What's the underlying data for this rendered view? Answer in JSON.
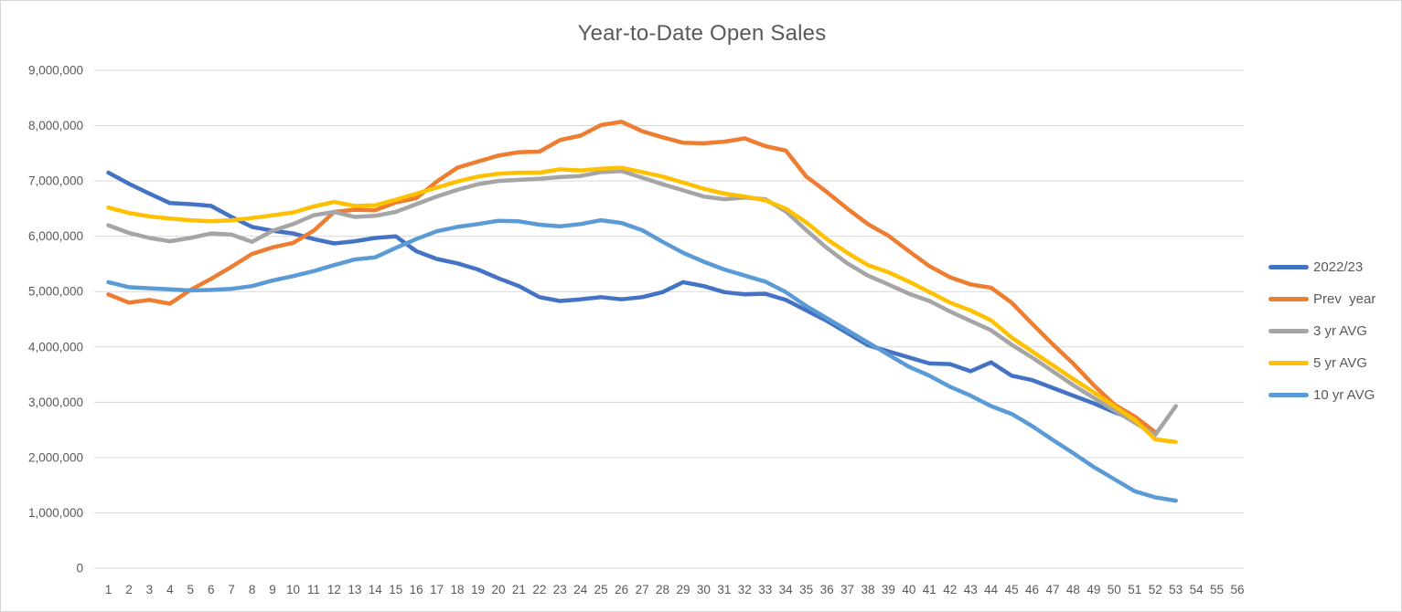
{
  "chart_data": {
    "type": "line",
    "title": "Year-to-Date Open Sales",
    "xlabel": "",
    "ylabel": "",
    "xlim": [
      1,
      56
    ],
    "ylim": [
      0,
      9000000
    ],
    "grid": "horizontal-only",
    "legend_position": "right",
    "x_ticks": [
      1,
      2,
      3,
      4,
      5,
      6,
      7,
      8,
      9,
      10,
      11,
      12,
      13,
      14,
      15,
      16,
      17,
      18,
      19,
      20,
      21,
      22,
      23,
      24,
      25,
      26,
      27,
      28,
      29,
      30,
      31,
      32,
      33,
      34,
      35,
      36,
      37,
      38,
      39,
      40,
      41,
      42,
      43,
      44,
      45,
      46,
      47,
      48,
      49,
      50,
      51,
      52,
      53,
      54,
      55,
      56
    ],
    "y_ticks": [
      "0",
      "1,000,000",
      "2,000,000",
      "3,000,000",
      "4,000,000",
      "5,000,000",
      "6,000,000",
      "7,000,000",
      "8,000,000",
      "9,000,000"
    ],
    "y_tick_values": [
      0,
      1000000,
      2000000,
      3000000,
      4000000,
      5000000,
      6000000,
      7000000,
      8000000,
      9000000
    ],
    "series": [
      {
        "name": "2022/23",
        "color": "#4472C4",
        "x_start": 1,
        "values": [
          7150000,
          6950000,
          6770000,
          6600000,
          6580000,
          6550000,
          6350000,
          6170000,
          6100000,
          6050000,
          5950000,
          5870000,
          5910000,
          5970000,
          6000000,
          5730000,
          5590000,
          5510000,
          5400000,
          5240000,
          5100000,
          4900000,
          4830000,
          4860000,
          4900000,
          4860000,
          4900000,
          4990000,
          5170000,
          5100000,
          4990000,
          4950000,
          4960000,
          4850000,
          4660000,
          4470000,
          4250000,
          4030000,
          3920000,
          3810000,
          3700000,
          3690000,
          3560000,
          3720000,
          3480000,
          3400000,
          3260000,
          3120000,
          2980000,
          2820000,
          2680000
        ]
      },
      {
        "name": "Prev  year",
        "color": "#ED7D31",
        "x_start": 1,
        "values": [
          4950000,
          4800000,
          4850000,
          4780000,
          5030000,
          5230000,
          5450000,
          5680000,
          5800000,
          5880000,
          6100000,
          6440000,
          6480000,
          6470000,
          6610000,
          6690000,
          6990000,
          7240000,
          7350000,
          7460000,
          7520000,
          7530000,
          7740000,
          7820000,
          8010000,
          8070000,
          7900000,
          7790000,
          7690000,
          7680000,
          7710000,
          7770000,
          7630000,
          7550000,
          7080000,
          6800000,
          6500000,
          6220000,
          6010000,
          5730000,
          5460000,
          5260000,
          5130000,
          5070000,
          4800000,
          4420000,
          4050000,
          3700000,
          3310000,
          2960000,
          2740000,
          2460000
        ]
      },
      {
        "name": "3 yr AVG",
        "color": "#A5A5A5",
        "x_start": 1,
        "values": [
          6200000,
          6060000,
          5970000,
          5910000,
          5970000,
          6050000,
          6030000,
          5900000,
          6100000,
          6220000,
          6380000,
          6440000,
          6350000,
          6370000,
          6440000,
          6580000,
          6720000,
          6840000,
          6940000,
          7000000,
          7020000,
          7040000,
          7070000,
          7090000,
          7160000,
          7180000,
          7060000,
          6940000,
          6830000,
          6720000,
          6670000,
          6700000,
          6670000,
          6450000,
          6110000,
          5790000,
          5510000,
          5290000,
          5130000,
          4960000,
          4830000,
          4640000,
          4470000,
          4300000,
          4040000,
          3810000,
          3560000,
          3310000,
          3080000,
          2850000,
          2630000,
          2410000,
          2930000
        ]
      },
      {
        "name": "5 yr AVG",
        "color": "#FFC000",
        "x_start": 1,
        "values": [
          6520000,
          6420000,
          6360000,
          6320000,
          6290000,
          6270000,
          6290000,
          6330000,
          6380000,
          6430000,
          6540000,
          6620000,
          6550000,
          6560000,
          6660000,
          6770000,
          6880000,
          6990000,
          7080000,
          7130000,
          7150000,
          7150000,
          7210000,
          7190000,
          7220000,
          7240000,
          7160000,
          7080000,
          6970000,
          6860000,
          6770000,
          6720000,
          6650000,
          6500000,
          6250000,
          5950000,
          5700000,
          5480000,
          5350000,
          5180000,
          4990000,
          4800000,
          4660000,
          4480000,
          4170000,
          3920000,
          3670000,
          3420000,
          3180000,
          2930000,
          2680000,
          2330000,
          2280000
        ]
      },
      {
        "name": "10 yr AVG",
        "color": "#5B9BD5",
        "x_start": 1,
        "values": [
          5170000,
          5080000,
          5060000,
          5040000,
          5020000,
          5030000,
          5050000,
          5100000,
          5200000,
          5280000,
          5370000,
          5480000,
          5580000,
          5620000,
          5790000,
          5950000,
          6090000,
          6170000,
          6220000,
          6280000,
          6270000,
          6210000,
          6180000,
          6220000,
          6290000,
          6240000,
          6110000,
          5900000,
          5700000,
          5540000,
          5400000,
          5290000,
          5180000,
          4990000,
          4740000,
          4520000,
          4300000,
          4080000,
          3860000,
          3640000,
          3480000,
          3280000,
          3120000,
          2930000,
          2790000,
          2570000,
          2320000,
          2080000,
          1830000,
          1610000,
          1390000,
          1280000,
          1220000
        ]
      }
    ]
  },
  "colors": {
    "grid": "#D9D9D9",
    "axis_text": "#595959",
    "title_text": "#595959",
    "background": "#FFFFFF"
  }
}
